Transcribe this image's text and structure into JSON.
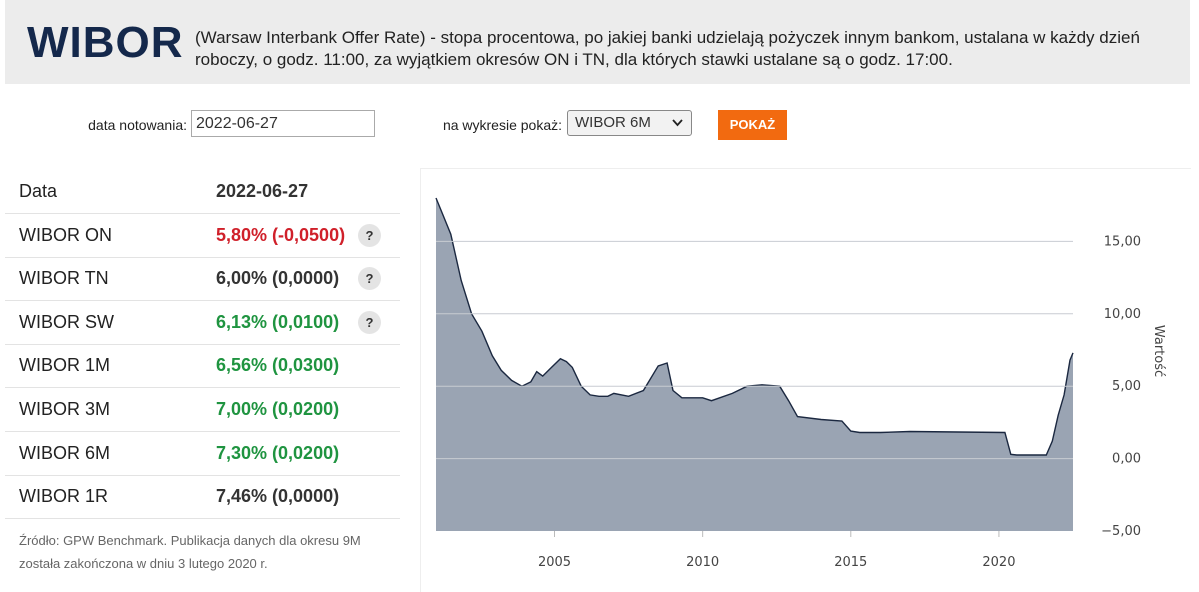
{
  "header": {
    "title": "WIBOR",
    "description": "(Warsaw Interbank Offer Rate) - stopa procentowa, po jakiej banki udzielają pożyczek innym bankom, ustalana w każdy dzień roboczy, o godz. 11:00, za wyjątkiem okresów ON i TN, dla których stawki ustalane są o godz. 17:00."
  },
  "form": {
    "date_label": "data notowania:",
    "date_value": "2022-06-27",
    "chart_label": "na wykresie pokaż:",
    "chart_option": "WIBOR 6M",
    "button": "POKAŻ"
  },
  "table": {
    "header": [
      "Data",
      "2022-06-27"
    ],
    "rows": [
      {
        "name": "WIBOR ON",
        "value": "5,80% (-0,0500)",
        "color": "#d0202a",
        "help": "?"
      },
      {
        "name": "WIBOR TN",
        "value": "6,00% (0,0000)",
        "color": "#333333",
        "help": "?"
      },
      {
        "name": "WIBOR SW",
        "value": "6,13% (0,0100)",
        "color": "#1f9440",
        "help": "?"
      },
      {
        "name": "WIBOR 1M",
        "value": "6,56% (0,0300)",
        "color": "#1f9440"
      },
      {
        "name": "WIBOR 3M",
        "value": "7,00% (0,0200)",
        "color": "#1f9440"
      },
      {
        "name": "WIBOR 6M",
        "value": "7,30% (0,0200)",
        "color": "#1f9440"
      },
      {
        "name": "WIBOR 1R",
        "value": "7,46% (0,0000)",
        "color": "#333333"
      }
    ]
  },
  "note": "Źródło: GPW Benchmark. Publikacja danych dla okresu 9M została zakończona w dniu 3 lutego 2020 r.",
  "chart_data": {
    "type": "area",
    "y_label": "Wartość",
    "fill": "#9aa4b3",
    "line_color": "#1b2840",
    "grid": true,
    "x": [
      2001.0,
      2001.2,
      2001.5,
      2001.85,
      2002.2,
      2002.55,
      2002.9,
      2003.2,
      2003.55,
      2003.9,
      2004.2,
      2004.4,
      2004.6,
      2004.9,
      2005.2,
      2005.4,
      2005.6,
      2005.9,
      2006.2,
      2006.5,
      2006.8,
      2007.0,
      2007.5,
      2008.0,
      2008.5,
      2008.8,
      2009.0,
      2009.3,
      2010.0,
      2010.3,
      2011.0,
      2011.5,
      2012.0,
      2012.6,
      2012.9,
      2013.2,
      2014.0,
      2014.7,
      2015.0,
      2015.3,
      2016.0,
      2017.0,
      2020.2,
      2020.4,
      2020.6,
      2021.6,
      2021.8,
      2022.0,
      2022.2,
      2022.4,
      2022.5
    ],
    "values": [
      18.0,
      17.0,
      15.5,
      12.3,
      10.0,
      8.8,
      7.1,
      6.1,
      5.4,
      5.0,
      5.3,
      6.0,
      5.7,
      6.3,
      6.9,
      6.7,
      6.3,
      5.0,
      4.4,
      4.3,
      4.3,
      4.5,
      4.3,
      4.7,
      6.4,
      6.6,
      4.7,
      4.2,
      4.2,
      4.0,
      4.5,
      5.0,
      5.1,
      5.0,
      4.0,
      2.9,
      2.7,
      2.6,
      1.9,
      1.8,
      1.8,
      1.87,
      1.8,
      0.3,
      0.25,
      0.25,
      1.2,
      3.0,
      4.4,
      6.8,
      7.3
    ],
    "xlim": [
      2001.0,
      2022.5
    ],
    "ylim": [
      -5,
      20
    ],
    "xticks": [
      2005,
      2010,
      2015,
      2020
    ],
    "yticks": [
      {
        "value": -5,
        "label": "−5,00"
      },
      {
        "value": 0,
        "label": "0,00"
      },
      {
        "value": 5,
        "label": "5,00"
      },
      {
        "value": 10,
        "label": "10,00"
      },
      {
        "value": 15,
        "label": "15,00"
      }
    ]
  }
}
